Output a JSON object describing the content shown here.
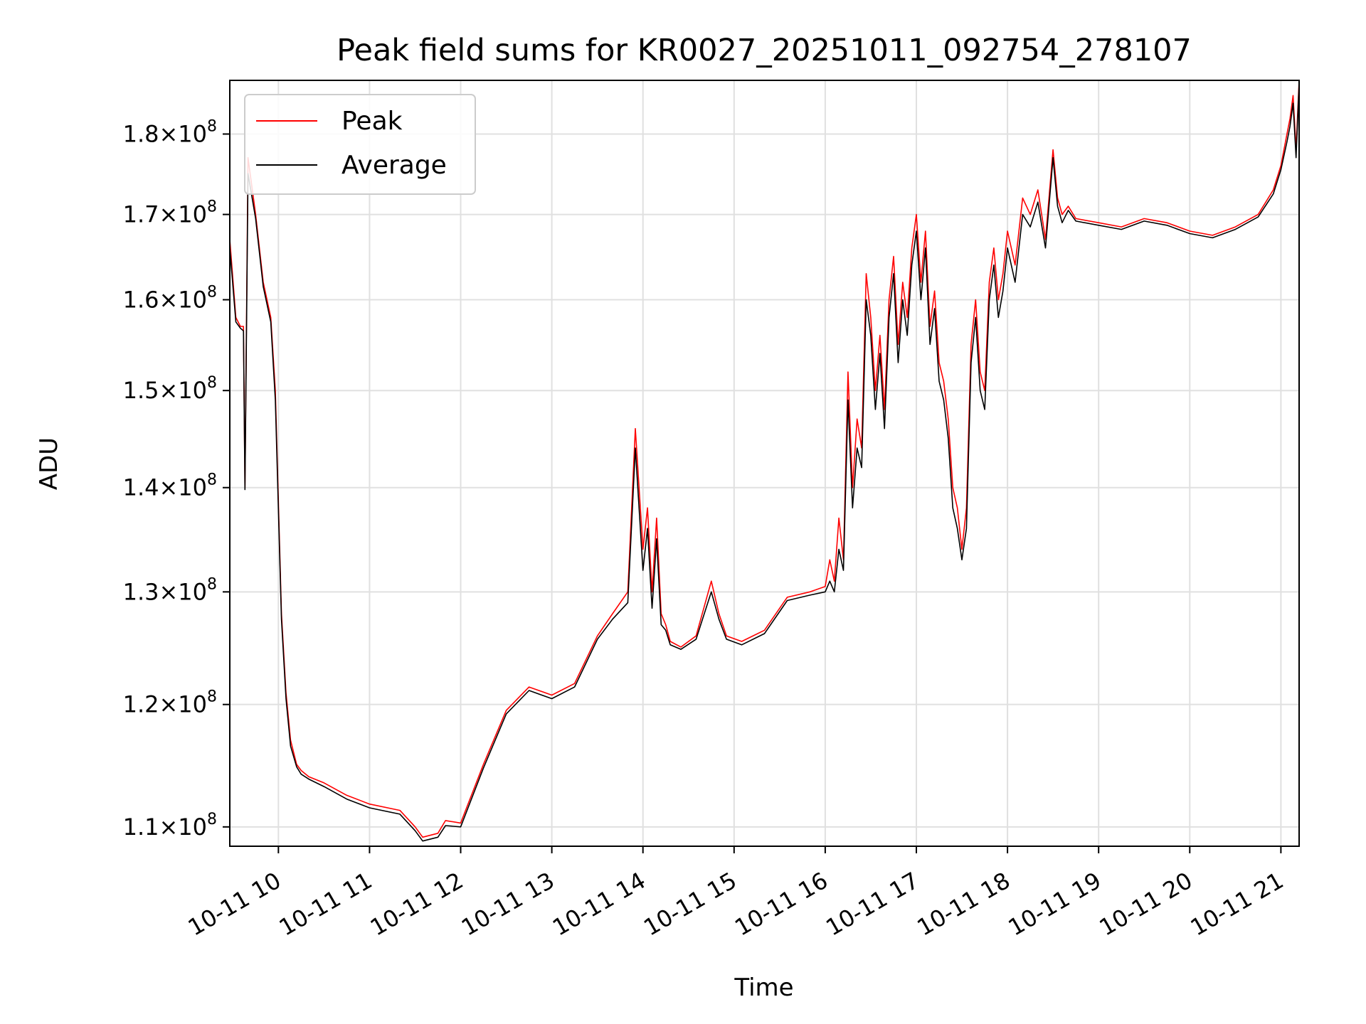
{
  "chart_data": {
    "type": "line",
    "title": "Peak field sums for KR0027_20251011_092754_278107",
    "xlabel": "Time",
    "ylabel": "ADU",
    "x_scale": "time",
    "y_scale": "log",
    "xlim": [
      "2025-10-11 09:28",
      "2025-10-11 21:12"
    ],
    "ylim": [
      108500000,
      187000000
    ],
    "x_ticks": [
      {
        "value": "2025-10-11 10:00",
        "label": "10-11 10"
      },
      {
        "value": "2025-10-11 11:00",
        "label": "10-11 11"
      },
      {
        "value": "2025-10-11 12:00",
        "label": "10-11 12"
      },
      {
        "value": "2025-10-11 13:00",
        "label": "10-11 13"
      },
      {
        "value": "2025-10-11 14:00",
        "label": "10-11 14"
      },
      {
        "value": "2025-10-11 15:00",
        "label": "10-11 15"
      },
      {
        "value": "2025-10-11 16:00",
        "label": "10-11 16"
      },
      {
        "value": "2025-10-11 17:00",
        "label": "10-11 17"
      },
      {
        "value": "2025-10-11 18:00",
        "label": "10-11 18"
      },
      {
        "value": "2025-10-11 19:00",
        "label": "10-11 19"
      },
      {
        "value": "2025-10-11 20:00",
        "label": "10-11 20"
      },
      {
        "value": "2025-10-11 21:00",
        "label": "10-11 21"
      }
    ],
    "y_ticks": [
      {
        "value": 110000000,
        "mantissa": "1.1",
        "exponent": "8"
      },
      {
        "value": 120000000,
        "mantissa": "1.2",
        "exponent": "8"
      },
      {
        "value": 130000000,
        "mantissa": "1.3",
        "exponent": "8"
      },
      {
        "value": 140000000,
        "mantissa": "1.4",
        "exponent": "8"
      },
      {
        "value": 150000000,
        "mantissa": "1.5",
        "exponent": "8"
      },
      {
        "value": 160000000,
        "mantissa": "1.6",
        "exponent": "8"
      },
      {
        "value": 170000000,
        "mantissa": "1.7",
        "exponent": "8"
      },
      {
        "value": 180000000,
        "mantissa": "1.8",
        "exponent": "8"
      }
    ],
    "grid": true,
    "legend": "upper-left",
    "series": [
      {
        "name": "Peak",
        "color": "#ff0000",
        "x": [
          "2025-10-11 09:28",
          "2025-10-11 09:32",
          "2025-10-11 09:35",
          "2025-10-11 09:37",
          "2025-10-11 09:38",
          "2025-10-11 09:40",
          "2025-10-11 09:45",
          "2025-10-11 09:50",
          "2025-10-11 09:55",
          "2025-10-11 09:58",
          "2025-10-11 10:02",
          "2025-10-11 10:05",
          "2025-10-11 10:08",
          "2025-10-11 10:12",
          "2025-10-11 10:15",
          "2025-10-11 10:20",
          "2025-10-11 10:30",
          "2025-10-11 10:45",
          "2025-10-11 11:00",
          "2025-10-11 11:20",
          "2025-10-11 11:30",
          "2025-10-11 11:35",
          "2025-10-11 11:45",
          "2025-10-11 11:50",
          "2025-10-11 12:00",
          "2025-10-11 12:15",
          "2025-10-11 12:30",
          "2025-10-11 12:45",
          "2025-10-11 13:00",
          "2025-10-11 13:15",
          "2025-10-11 13:30",
          "2025-10-11 13:40",
          "2025-10-11 13:50",
          "2025-10-11 13:55",
          "2025-10-11 14:00",
          "2025-10-11 14:03",
          "2025-10-11 14:06",
          "2025-10-11 14:09",
          "2025-10-11 14:12",
          "2025-10-11 14:15",
          "2025-10-11 14:18",
          "2025-10-11 14:25",
          "2025-10-11 14:35",
          "2025-10-11 14:45",
          "2025-10-11 14:50",
          "2025-10-11 14:55",
          "2025-10-11 15:05",
          "2025-10-11 15:20",
          "2025-10-11 15:35",
          "2025-10-11 15:50",
          "2025-10-11 16:00",
          "2025-10-11 16:03",
          "2025-10-11 16:06",
          "2025-10-11 16:09",
          "2025-10-11 16:12",
          "2025-10-11 16:15",
          "2025-10-11 16:18",
          "2025-10-11 16:21",
          "2025-10-11 16:24",
          "2025-10-11 16:27",
          "2025-10-11 16:30",
          "2025-10-11 16:33",
          "2025-10-11 16:36",
          "2025-10-11 16:39",
          "2025-10-11 16:42",
          "2025-10-11 16:45",
          "2025-10-11 16:48",
          "2025-10-11 16:51",
          "2025-10-11 16:54",
          "2025-10-11 16:57",
          "2025-10-11 17:00",
          "2025-10-11 17:03",
          "2025-10-11 17:06",
          "2025-10-11 17:09",
          "2025-10-11 17:12",
          "2025-10-11 17:15",
          "2025-10-11 17:18",
          "2025-10-11 17:21",
          "2025-10-11 17:24",
          "2025-10-11 17:27",
          "2025-10-11 17:30",
          "2025-10-11 17:33",
          "2025-10-11 17:36",
          "2025-10-11 17:39",
          "2025-10-11 17:42",
          "2025-10-11 17:45",
          "2025-10-11 17:48",
          "2025-10-11 17:51",
          "2025-10-11 17:54",
          "2025-10-11 17:57",
          "2025-10-11 18:00",
          "2025-10-11 18:05",
          "2025-10-11 18:10",
          "2025-10-11 18:15",
          "2025-10-11 18:20",
          "2025-10-11 18:25",
          "2025-10-11 18:30",
          "2025-10-11 18:33",
          "2025-10-11 18:36",
          "2025-10-11 18:40",
          "2025-10-11 18:45",
          "2025-10-11 19:00",
          "2025-10-11 19:15",
          "2025-10-11 19:30",
          "2025-10-11 19:45",
          "2025-10-11 20:00",
          "2025-10-11 20:15",
          "2025-10-11 20:30",
          "2025-10-11 20:45",
          "2025-10-11 20:55",
          "2025-10-11 21:00",
          "2025-10-11 21:04",
          "2025-10-11 21:06",
          "2025-10-11 21:08",
          "2025-10-11 21:10",
          "2025-10-11 21:12"
        ],
        "values": [
          167000000,
          158000000,
          157000000,
          157000000,
          140000000,
          177000000,
          170000000,
          162000000,
          158000000,
          150000000,
          128000000,
          121000000,
          117000000,
          115000000,
          114500000,
          114000000,
          113500000,
          112500000,
          111800000,
          111300000,
          110000000,
          109200000,
          109500000,
          110500000,
          110300000,
          115000000,
          119500000,
          121500000,
          120800000,
          121800000,
          126000000,
          128000000,
          130000000,
          146000000,
          134000000,
          138000000,
          130000000,
          137000000,
          128000000,
          127000000,
          125500000,
          125000000,
          126000000,
          131000000,
          128000000,
          126000000,
          125500000,
          126500000,
          129500000,
          130000000,
          130500000,
          133000000,
          131000000,
          137000000,
          133000000,
          152000000,
          140000000,
          147000000,
          144000000,
          163000000,
          158000000,
          150000000,
          156000000,
          148000000,
          160000000,
          165000000,
          155000000,
          162000000,
          158000000,
          166000000,
          170000000,
          162000000,
          168000000,
          157000000,
          161000000,
          153000000,
          151000000,
          147000000,
          140000000,
          138000000,
          134000000,
          138000000,
          155000000,
          160000000,
          152000000,
          150000000,
          162000000,
          166000000,
          160000000,
          163000000,
          168000000,
          164000000,
          172000000,
          170000000,
          173000000,
          167000000,
          178000000,
          172000000,
          170000000,
          171000000,
          169500000,
          169000000,
          168500000,
          169500000,
          169000000,
          168000000,
          167500000,
          168500000,
          170000000,
          173000000,
          176000000,
          180000000,
          182000000,
          185000000,
          178000000,
          187000000
        ]
      },
      {
        "name": "Average",
        "color": "#000000",
        "x": [
          "2025-10-11 09:28",
          "2025-10-11 09:32",
          "2025-10-11 09:35",
          "2025-10-11 09:37",
          "2025-10-11 09:38",
          "2025-10-11 09:40",
          "2025-10-11 09:45",
          "2025-10-11 09:50",
          "2025-10-11 09:55",
          "2025-10-11 09:58",
          "2025-10-11 10:02",
          "2025-10-11 10:05",
          "2025-10-11 10:08",
          "2025-10-11 10:12",
          "2025-10-11 10:15",
          "2025-10-11 10:20",
          "2025-10-11 10:30",
          "2025-10-11 10:45",
          "2025-10-11 11:00",
          "2025-10-11 11:20",
          "2025-10-11 11:30",
          "2025-10-11 11:35",
          "2025-10-11 11:45",
          "2025-10-11 11:50",
          "2025-10-11 12:00",
          "2025-10-11 12:15",
          "2025-10-11 12:30",
          "2025-10-11 12:45",
          "2025-10-11 13:00",
          "2025-10-11 13:15",
          "2025-10-11 13:30",
          "2025-10-11 13:40",
          "2025-10-11 13:50",
          "2025-10-11 13:55",
          "2025-10-11 14:00",
          "2025-10-11 14:03",
          "2025-10-11 14:06",
          "2025-10-11 14:09",
          "2025-10-11 14:12",
          "2025-10-11 14:15",
          "2025-10-11 14:18",
          "2025-10-11 14:25",
          "2025-10-11 14:35",
          "2025-10-11 14:45",
          "2025-10-11 14:50",
          "2025-10-11 14:55",
          "2025-10-11 15:05",
          "2025-10-11 15:20",
          "2025-10-11 15:35",
          "2025-10-11 15:50",
          "2025-10-11 16:00",
          "2025-10-11 16:03",
          "2025-10-11 16:06",
          "2025-10-11 16:09",
          "2025-10-11 16:12",
          "2025-10-11 16:15",
          "2025-10-11 16:18",
          "2025-10-11 16:21",
          "2025-10-11 16:24",
          "2025-10-11 16:27",
          "2025-10-11 16:30",
          "2025-10-11 16:33",
          "2025-10-11 16:36",
          "2025-10-11 16:39",
          "2025-10-11 16:42",
          "2025-10-11 16:45",
          "2025-10-11 16:48",
          "2025-10-11 16:51",
          "2025-10-11 16:54",
          "2025-10-11 16:57",
          "2025-10-11 17:00",
          "2025-10-11 17:03",
          "2025-10-11 17:06",
          "2025-10-11 17:09",
          "2025-10-11 17:12",
          "2025-10-11 17:15",
          "2025-10-11 17:18",
          "2025-10-11 17:21",
          "2025-10-11 17:24",
          "2025-10-11 17:27",
          "2025-10-11 17:30",
          "2025-10-11 17:33",
          "2025-10-11 17:36",
          "2025-10-11 17:39",
          "2025-10-11 17:42",
          "2025-10-11 17:45",
          "2025-10-11 17:48",
          "2025-10-11 17:51",
          "2025-10-11 17:54",
          "2025-10-11 17:57",
          "2025-10-11 18:00",
          "2025-10-11 18:05",
          "2025-10-11 18:10",
          "2025-10-11 18:15",
          "2025-10-11 18:20",
          "2025-10-11 18:25",
          "2025-10-11 18:30",
          "2025-10-11 18:33",
          "2025-10-11 18:36",
          "2025-10-11 18:40",
          "2025-10-11 18:45",
          "2025-10-11 19:00",
          "2025-10-11 19:15",
          "2025-10-11 19:30",
          "2025-10-11 19:45",
          "2025-10-11 20:00",
          "2025-10-11 20:15",
          "2025-10-11 20:30",
          "2025-10-11 20:45",
          "2025-10-11 20:55",
          "2025-10-11 21:00",
          "2025-10-11 21:04",
          "2025-10-11 21:06",
          "2025-10-11 21:08",
          "2025-10-11 21:10",
          "2025-10-11 21:12"
        ],
        "values": [
          166000000,
          157500000,
          156800000,
          156500000,
          139800000,
          175000000,
          169500000,
          161500000,
          157500000,
          149000000,
          127500000,
          120500000,
          116500000,
          114800000,
          114200000,
          113800000,
          113200000,
          112200000,
          111500000,
          111000000,
          109700000,
          108900000,
          109200000,
          110100000,
          110000000,
          114700000,
          119200000,
          121200000,
          120500000,
          121500000,
          125700000,
          127500000,
          129000000,
          144000000,
          132000000,
          136000000,
          128500000,
          135000000,
          127000000,
          126500000,
          125200000,
          124800000,
          125700000,
          130000000,
          127500000,
          125700000,
          125200000,
          126200000,
          129200000,
          129700000,
          130000000,
          131000000,
          130000000,
          134000000,
          132000000,
          149000000,
          138000000,
          144000000,
          142000000,
          160000000,
          156000000,
          148000000,
          154000000,
          146000000,
          158000000,
          163000000,
          153000000,
          160000000,
          156000000,
          164000000,
          168000000,
          160000000,
          166000000,
          155000000,
          159000000,
          151000000,
          149000000,
          145000000,
          138000000,
          136000000,
          133000000,
          136000000,
          153000000,
          158000000,
          150000000,
          148000000,
          160000000,
          164000000,
          158000000,
          161000000,
          166000000,
          162000000,
          170000000,
          168500000,
          171500000,
          166000000,
          177000000,
          171000000,
          169000000,
          170500000,
          169200000,
          168700000,
          168200000,
          169200000,
          168700000,
          167700000,
          167200000,
          168200000,
          169700000,
          172500000,
          175500000,
          179000000,
          181000000,
          184000000,
          177000000,
          186500000
        ]
      }
    ]
  }
}
